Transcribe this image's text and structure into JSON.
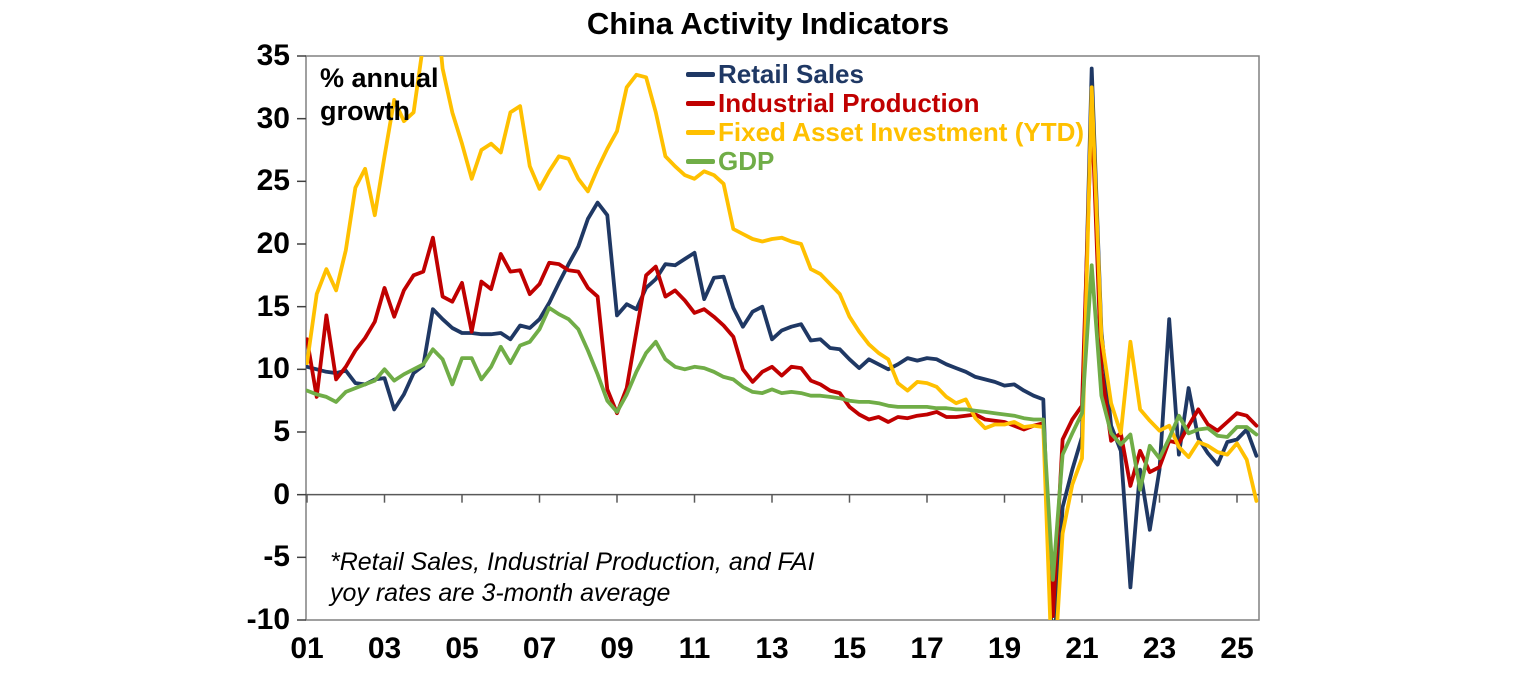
{
  "title": "China Activity Indicators",
  "y_axis": {
    "unit_label": "% annual growth",
    "tick_values": [
      35,
      30,
      25,
      20,
      15,
      10,
      5,
      0,
      -5,
      -10
    ],
    "min": -10,
    "max": 35
  },
  "x_axis": {
    "tick_labels": [
      "01",
      "03",
      "05",
      "07",
      "09",
      "11",
      "13",
      "15",
      "17",
      "19",
      "21",
      "23",
      "25"
    ],
    "tick_years": [
      2001,
      2003,
      2005,
      2007,
      2009,
      2011,
      2013,
      2015,
      2017,
      2019,
      2021,
      2023,
      2025
    ]
  },
  "legend": [
    {
      "label": "Retail Sales",
      "color": "#1F3864"
    },
    {
      "label": "Industrial Production",
      "color": "#C00000"
    },
    {
      "label": "Fixed Asset Investment (YTD)",
      "color": "#FFC000"
    },
    {
      "label": "GDP",
      "color": "#70AD47"
    }
  ],
  "annotation": {
    "line1": "*Retail Sales, Industrial Production, and FAI",
    "line2": "yoy rates are 3-month average"
  },
  "colors": {
    "frame": "#808080",
    "axis": "#595959",
    "tick": "#404040",
    "text": "#000000",
    "background": "#FFFFFF"
  },
  "chart_data": {
    "type": "line",
    "title": "China Activity Indicators",
    "ylabel": "% annual growth",
    "ylim": [
      -10,
      35
    ],
    "xlim": [
      2001,
      2025.75
    ],
    "grid": "zero-line only",
    "legend_position": "top-center inside plot",
    "x_start": 2001.0,
    "x_step": 0.25,
    "x_unit": "year (quarterly samples, yoy % growth)",
    "series": [
      {
        "name": "Retail Sales",
        "color": "#1F3864",
        "values": [
          10.2,
          10.0,
          9.8,
          9.7,
          9.9,
          8.9,
          8.8,
          9.2,
          9.3,
          6.8,
          8.0,
          9.7,
          10.3,
          14.8,
          14.0,
          13.3,
          12.9,
          12.9,
          12.8,
          12.8,
          12.9,
          12.4,
          13.5,
          13.3,
          14.0,
          15.3,
          16.9,
          18.4,
          19.8,
          22.0,
          23.3,
          22.3,
          14.3,
          15.2,
          14.8,
          16.5,
          17.2,
          18.4,
          18.3,
          18.8,
          19.3,
          15.6,
          17.3,
          17.4,
          14.9,
          13.4,
          14.6,
          15.0,
          12.4,
          13.1,
          13.4,
          13.6,
          12.3,
          12.4,
          11.7,
          11.6,
          10.8,
          10.1,
          10.8,
          10.4,
          10.0,
          10.4,
          10.9,
          10.7,
          10.9,
          10.8,
          10.4,
          10.1,
          9.8,
          9.4,
          9.2,
          9.0,
          8.7,
          8.8,
          8.3,
          7.9,
          7.6,
          -14.0,
          -1.0,
          2.0,
          4.6,
          34.0,
          13.0,
          5.5,
          3.5,
          -7.4,
          2.0,
          -2.8,
          2.0,
          14.0,
          3.2,
          8.5,
          4.5,
          3.3,
          2.4,
          4.2,
          4.4,
          5.2,
          3.1
        ]
      },
      {
        "name": "Industrial Production",
        "color": "#C00000",
        "values": [
          12.4,
          7.8,
          14.3,
          9.2,
          10.2,
          11.5,
          12.5,
          13.8,
          16.5,
          14.2,
          16.3,
          17.5,
          17.8,
          20.5,
          15.8,
          15.4,
          16.9,
          13.0,
          17.0,
          16.4,
          19.2,
          17.8,
          17.9,
          16.0,
          16.8,
          18.5,
          18.4,
          17.9,
          17.8,
          16.5,
          15.8,
          8.4,
          6.5,
          8.5,
          13.0,
          17.5,
          18.2,
          15.8,
          16.3,
          15.5,
          14.5,
          14.8,
          14.2,
          13.5,
          12.6,
          10.0,
          9.0,
          9.8,
          10.2,
          9.5,
          10.2,
          10.1,
          9.1,
          8.8,
          8.3,
          8.1,
          7.0,
          6.4,
          6.0,
          6.2,
          5.8,
          6.2,
          6.1,
          6.3,
          6.4,
          6.6,
          6.2,
          6.2,
          6.3,
          6.4,
          6.0,
          5.9,
          5.8,
          5.5,
          5.2,
          5.5,
          5.7,
          -9.7,
          4.4,
          6.0,
          7.1,
          31.0,
          10.0,
          4.3,
          4.9,
          0.7,
          3.5,
          1.8,
          2.2,
          4.3,
          4.1,
          5.5,
          6.8,
          5.6,
          5.1,
          5.8,
          6.5,
          6.3,
          5.5
        ]
      },
      {
        "name": "Fixed Asset Investment (YTD)",
        "color": "#FFC000",
        "values": [
          10.5,
          16.0,
          18.0,
          16.3,
          19.5,
          24.5,
          26.0,
          22.3,
          27.0,
          31.5,
          29.8,
          30.5,
          36.0,
          42.0,
          34.0,
          30.5,
          28.0,
          25.2,
          27.5,
          28.0,
          27.3,
          30.5,
          31.0,
          26.2,
          24.4,
          25.8,
          27.0,
          26.8,
          25.2,
          24.2,
          26.0,
          27.6,
          29.0,
          32.5,
          33.5,
          33.3,
          30.5,
          27.0,
          26.2,
          25.5,
          25.2,
          25.8,
          25.5,
          24.8,
          21.2,
          20.8,
          20.4,
          20.2,
          20.4,
          20.5,
          20.2,
          20.0,
          18.0,
          17.6,
          16.8,
          16.0,
          14.2,
          13.0,
          12.0,
          11.3,
          10.8,
          8.9,
          8.3,
          9.0,
          8.9,
          8.6,
          7.8,
          7.3,
          7.6,
          6.1,
          5.3,
          5.6,
          5.6,
          5.8,
          5.4,
          5.5,
          5.4,
          -16.0,
          -3.1,
          0.8,
          2.9,
          32.5,
          12.6,
          7.3,
          4.9,
          12.2,
          6.8,
          5.9,
          5.1,
          5.5,
          3.8,
          3.0,
          4.2,
          3.9,
          3.4,
          3.2,
          4.1,
          2.8,
          -0.5
        ]
      },
      {
        "name": "GDP",
        "color": "#70AD47",
        "values": [
          8.3,
          8.0,
          7.8,
          7.4,
          8.2,
          8.5,
          8.8,
          9.1,
          10.0,
          9.1,
          9.6,
          10.0,
          10.4,
          11.6,
          10.8,
          8.8,
          10.9,
          10.9,
          9.2,
          10.2,
          11.8,
          10.5,
          11.9,
          12.2,
          13.2,
          14.9,
          14.4,
          14.0,
          13.2,
          11.5,
          9.6,
          7.5,
          6.6,
          8.0,
          9.8,
          11.3,
          12.2,
          10.8,
          10.2,
          10.0,
          10.2,
          10.1,
          9.8,
          9.4,
          9.2,
          8.6,
          8.2,
          8.1,
          8.4,
          8.1,
          8.2,
          8.1,
          7.9,
          7.9,
          7.8,
          7.7,
          7.5,
          7.4,
          7.4,
          7.3,
          7.1,
          7.0,
          7.0,
          7.0,
          7.0,
          6.9,
          6.9,
          6.8,
          6.8,
          6.7,
          6.6,
          6.5,
          6.4,
          6.3,
          6.1,
          6.0,
          6.0,
          -6.8,
          3.2,
          4.9,
          6.5,
          18.3,
          7.9,
          4.9,
          4.0,
          4.8,
          0.4,
          3.9,
          2.9,
          4.5,
          6.3,
          4.9,
          5.2,
          5.3,
          4.7,
          4.6,
          5.4,
          5.4,
          4.8
        ]
      }
    ]
  }
}
